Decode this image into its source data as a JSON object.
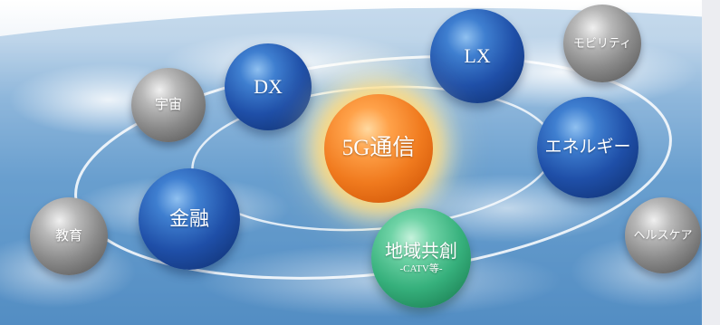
{
  "colors": {
    "sky_top": "#ffffff",
    "earth_blue": "#5d97c9",
    "blue_sphere": "#1f4fa8",
    "gray_sphere": "#8a8a8a",
    "orange_sphere": "#f07a1e",
    "green_sphere": "#36b07c"
  },
  "spheres": {
    "center": {
      "label": "5G通信",
      "color": "orange"
    },
    "dx": {
      "label": "DX",
      "color": "blue"
    },
    "lx": {
      "label": "LX",
      "color": "blue"
    },
    "energy": {
      "label": "エネルギー",
      "color": "blue"
    },
    "finance": {
      "label": "金融",
      "color": "blue"
    },
    "regional": {
      "label": "地域共創",
      "sublabel": "-CATV等-",
      "color": "green"
    },
    "space": {
      "label": "宇宙",
      "color": "gray"
    },
    "mobility": {
      "label": "モビリティ",
      "color": "gray"
    },
    "education": {
      "label": "教育",
      "color": "gray"
    },
    "healthcare": {
      "label": "ヘルスケア",
      "color": "gray"
    }
  }
}
